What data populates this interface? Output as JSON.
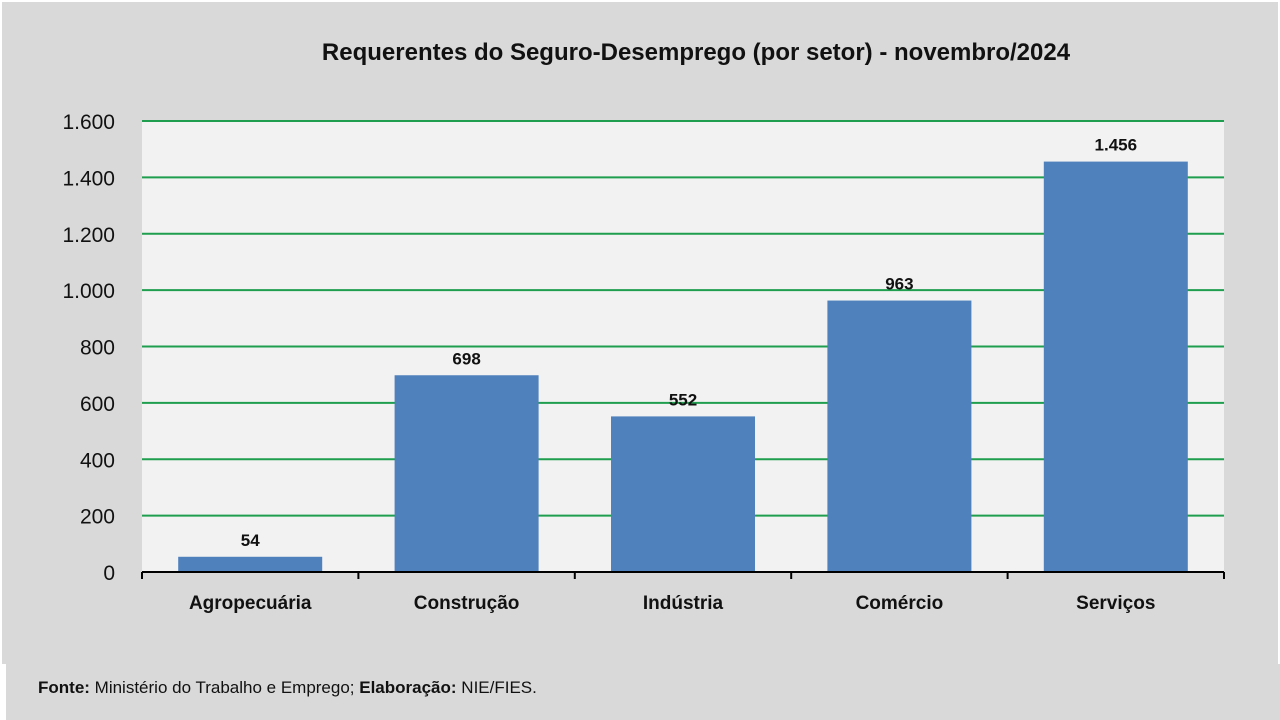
{
  "chart_data": {
    "type": "bar",
    "title": "Requerentes do Seguro-Desemprego (por setor) - novembro/2024",
    "categories": [
      "Agropecuária",
      "Construção",
      "Indústria",
      "Comércio",
      "Serviços"
    ],
    "values": [
      54,
      698,
      552,
      963,
      1456
    ],
    "value_labels": [
      "54",
      "698",
      "552",
      "963",
      "1.456"
    ],
    "xlabel": "",
    "ylabel": "",
    "ylim": [
      0,
      1600
    ],
    "yticks": [
      0,
      200,
      400,
      600,
      800,
      1000,
      1200,
      1400,
      1600
    ],
    "ytick_labels": [
      "0",
      "200",
      "400",
      "600",
      "800",
      "1.000",
      "1.200",
      "1.400",
      "1.600"
    ],
    "grid": true,
    "legend": "none",
    "colors": {
      "bar": "#4f81bd",
      "grid": "#1e9e4e",
      "plot_bg": "#f2f2f2",
      "bg": "#d9d9d9"
    }
  },
  "footer": {
    "source_label": "Fonte:",
    "source_text": " Ministério do Trabalho e Emprego; ",
    "elab_label": "Elaboração:",
    "elab_text": " NIE/FIES."
  }
}
